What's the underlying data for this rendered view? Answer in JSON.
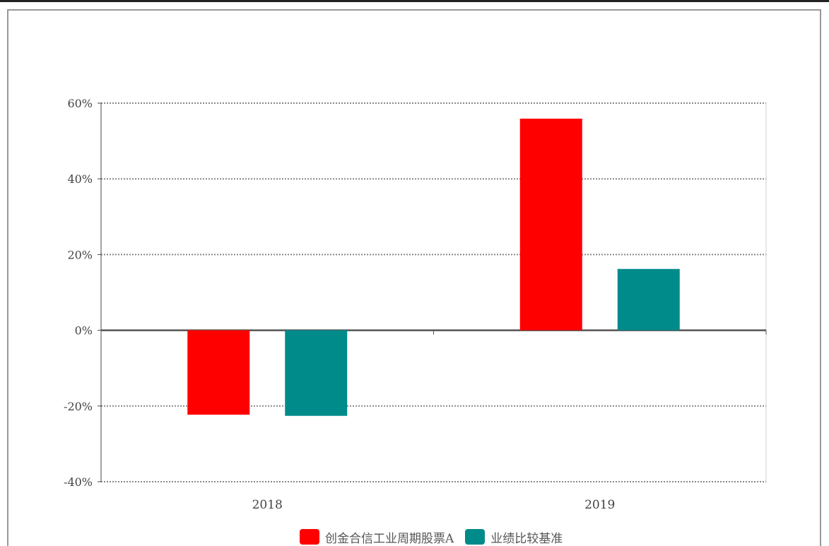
{
  "chart_data": {
    "type": "bar",
    "categories": [
      "2018",
      "2019"
    ],
    "series": [
      {
        "name": "创金合信工业周期股票A",
        "color": "#ff0000",
        "values": [
          -22.3,
          55.9
        ]
      },
      {
        "name": "业绩比较基准",
        "color": "#008b8b",
        "values": [
          -22.6,
          16.2
        ]
      }
    ],
    "ylim": [
      -40,
      60
    ],
    "yticks": [
      60,
      40,
      20,
      0,
      -20,
      -40
    ],
    "ytick_labels": [
      "60%",
      "40%",
      "20%",
      "0%",
      "-20%",
      "-40%"
    ],
    "xlabel": "",
    "ylabel": "",
    "grid": true,
    "legend_position": "bottom"
  }
}
